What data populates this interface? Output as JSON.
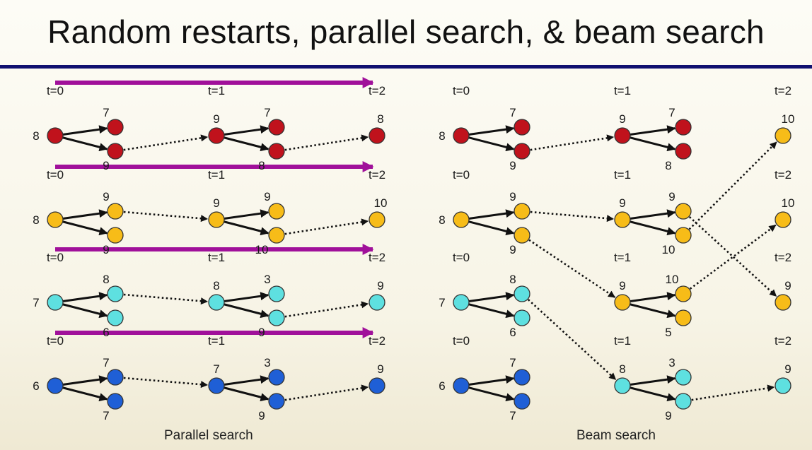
{
  "title": "Random restarts, parallel search, & beam search",
  "colors": {
    "rule": "#101070",
    "arrow": "#a0109a",
    "red": "#c0121c",
    "yellow": "#f7bc18",
    "cyan": "#5ee0e0",
    "blue": "#1f5fd6"
  },
  "parallel": {
    "caption": "Parallel search",
    "rows": [
      {
        "color": "red",
        "times": [
          "t=0",
          "t=1",
          "t=2"
        ],
        "root": "8",
        "c1": [
          "7",
          "9"
        ],
        "n1": "9",
        "c2": [
          "7",
          "8"
        ],
        "final": "8"
      },
      {
        "color": "yellow",
        "times": [
          "t=0",
          "t=1",
          "t=2"
        ],
        "root": "8",
        "c1": [
          "9",
          "9"
        ],
        "n1": "9",
        "c2": [
          "9",
          "10"
        ],
        "final": "10"
      },
      {
        "color": "cyan",
        "times": [
          "t=0",
          "t=1",
          "t=2"
        ],
        "root": "7",
        "c1": [
          "8",
          "6"
        ],
        "n1": "8",
        "c2": [
          "3",
          "9"
        ],
        "final": "9"
      },
      {
        "color": "blue",
        "times": [
          "t=0",
          "t=1",
          "t=2"
        ],
        "root": "6",
        "c1": [
          "7",
          "7"
        ],
        "n1": "7",
        "c2": [
          "3",
          "9"
        ],
        "final": "9"
      }
    ]
  },
  "beam": {
    "caption": "Beam search",
    "rows": [
      {
        "color": "red",
        "times": [
          "t=0",
          "t=1",
          "t=2"
        ],
        "root": "8",
        "c1": [
          "7",
          "9"
        ],
        "n1": "9",
        "c2": [
          "7",
          "8"
        ],
        "final": "10",
        "n1color": "red",
        "finalcolor": "yellow"
      },
      {
        "color": "yellow",
        "times": [
          "t=0",
          "t=1",
          "t=2"
        ],
        "root": "8",
        "c1": [
          "9",
          "9"
        ],
        "n1": "9",
        "c2": [
          "9",
          "10"
        ],
        "final": "10",
        "n1color": "yellow",
        "finalcolor": "yellow"
      },
      {
        "color": "cyan",
        "times": [
          "t=0",
          "t=1",
          "t=2"
        ],
        "root": "7",
        "c1": [
          "8",
          "6"
        ],
        "n1": "9",
        "c2": [
          "10",
          "5"
        ],
        "final": "9",
        "n1color": "yellow",
        "finalcolor": "yellow"
      },
      {
        "color": "blue",
        "times": [
          "t=0",
          "t=1",
          "t=2"
        ],
        "root": "6",
        "c1": [
          "7",
          "7"
        ],
        "n1": "8",
        "c2": [
          "3",
          "9"
        ],
        "final": "9",
        "n1color": "cyan",
        "finalcolor": "cyan"
      }
    ]
  }
}
